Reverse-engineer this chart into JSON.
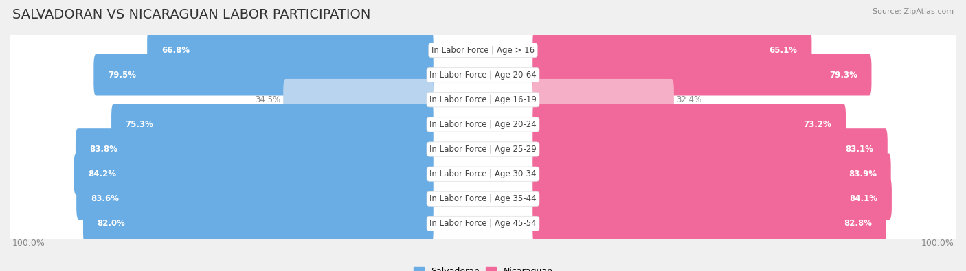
{
  "title": "SALVADORAN VS NICARAGUAN LABOR PARTICIPATION",
  "source": "Source: ZipAtlas.com",
  "categories": [
    "In Labor Force | Age > 16",
    "In Labor Force | Age 20-64",
    "In Labor Force | Age 16-19",
    "In Labor Force | Age 20-24",
    "In Labor Force | Age 25-29",
    "In Labor Force | Age 30-34",
    "In Labor Force | Age 35-44",
    "In Labor Force | Age 45-54"
  ],
  "salvadoran_values": [
    66.8,
    79.5,
    34.5,
    75.3,
    83.8,
    84.2,
    83.6,
    82.0
  ],
  "nicaraguan_values": [
    65.1,
    79.3,
    32.4,
    73.2,
    83.1,
    83.9,
    84.1,
    82.8
  ],
  "salvadoran_color": "#6aade4",
  "salvadoran_color_light": "#b8d4ee",
  "nicaraguan_color": "#f0699a",
  "nicaraguan_color_light": "#f5b0c8",
  "background_color": "#f0f0f0",
  "row_bg_color": "#ffffff",
  "max_value": 100.0,
  "title_fontsize": 14,
  "label_fontsize": 8.5,
  "value_fontsize": 8.5,
  "tick_fontsize": 9,
  "legend_fontsize": 9
}
